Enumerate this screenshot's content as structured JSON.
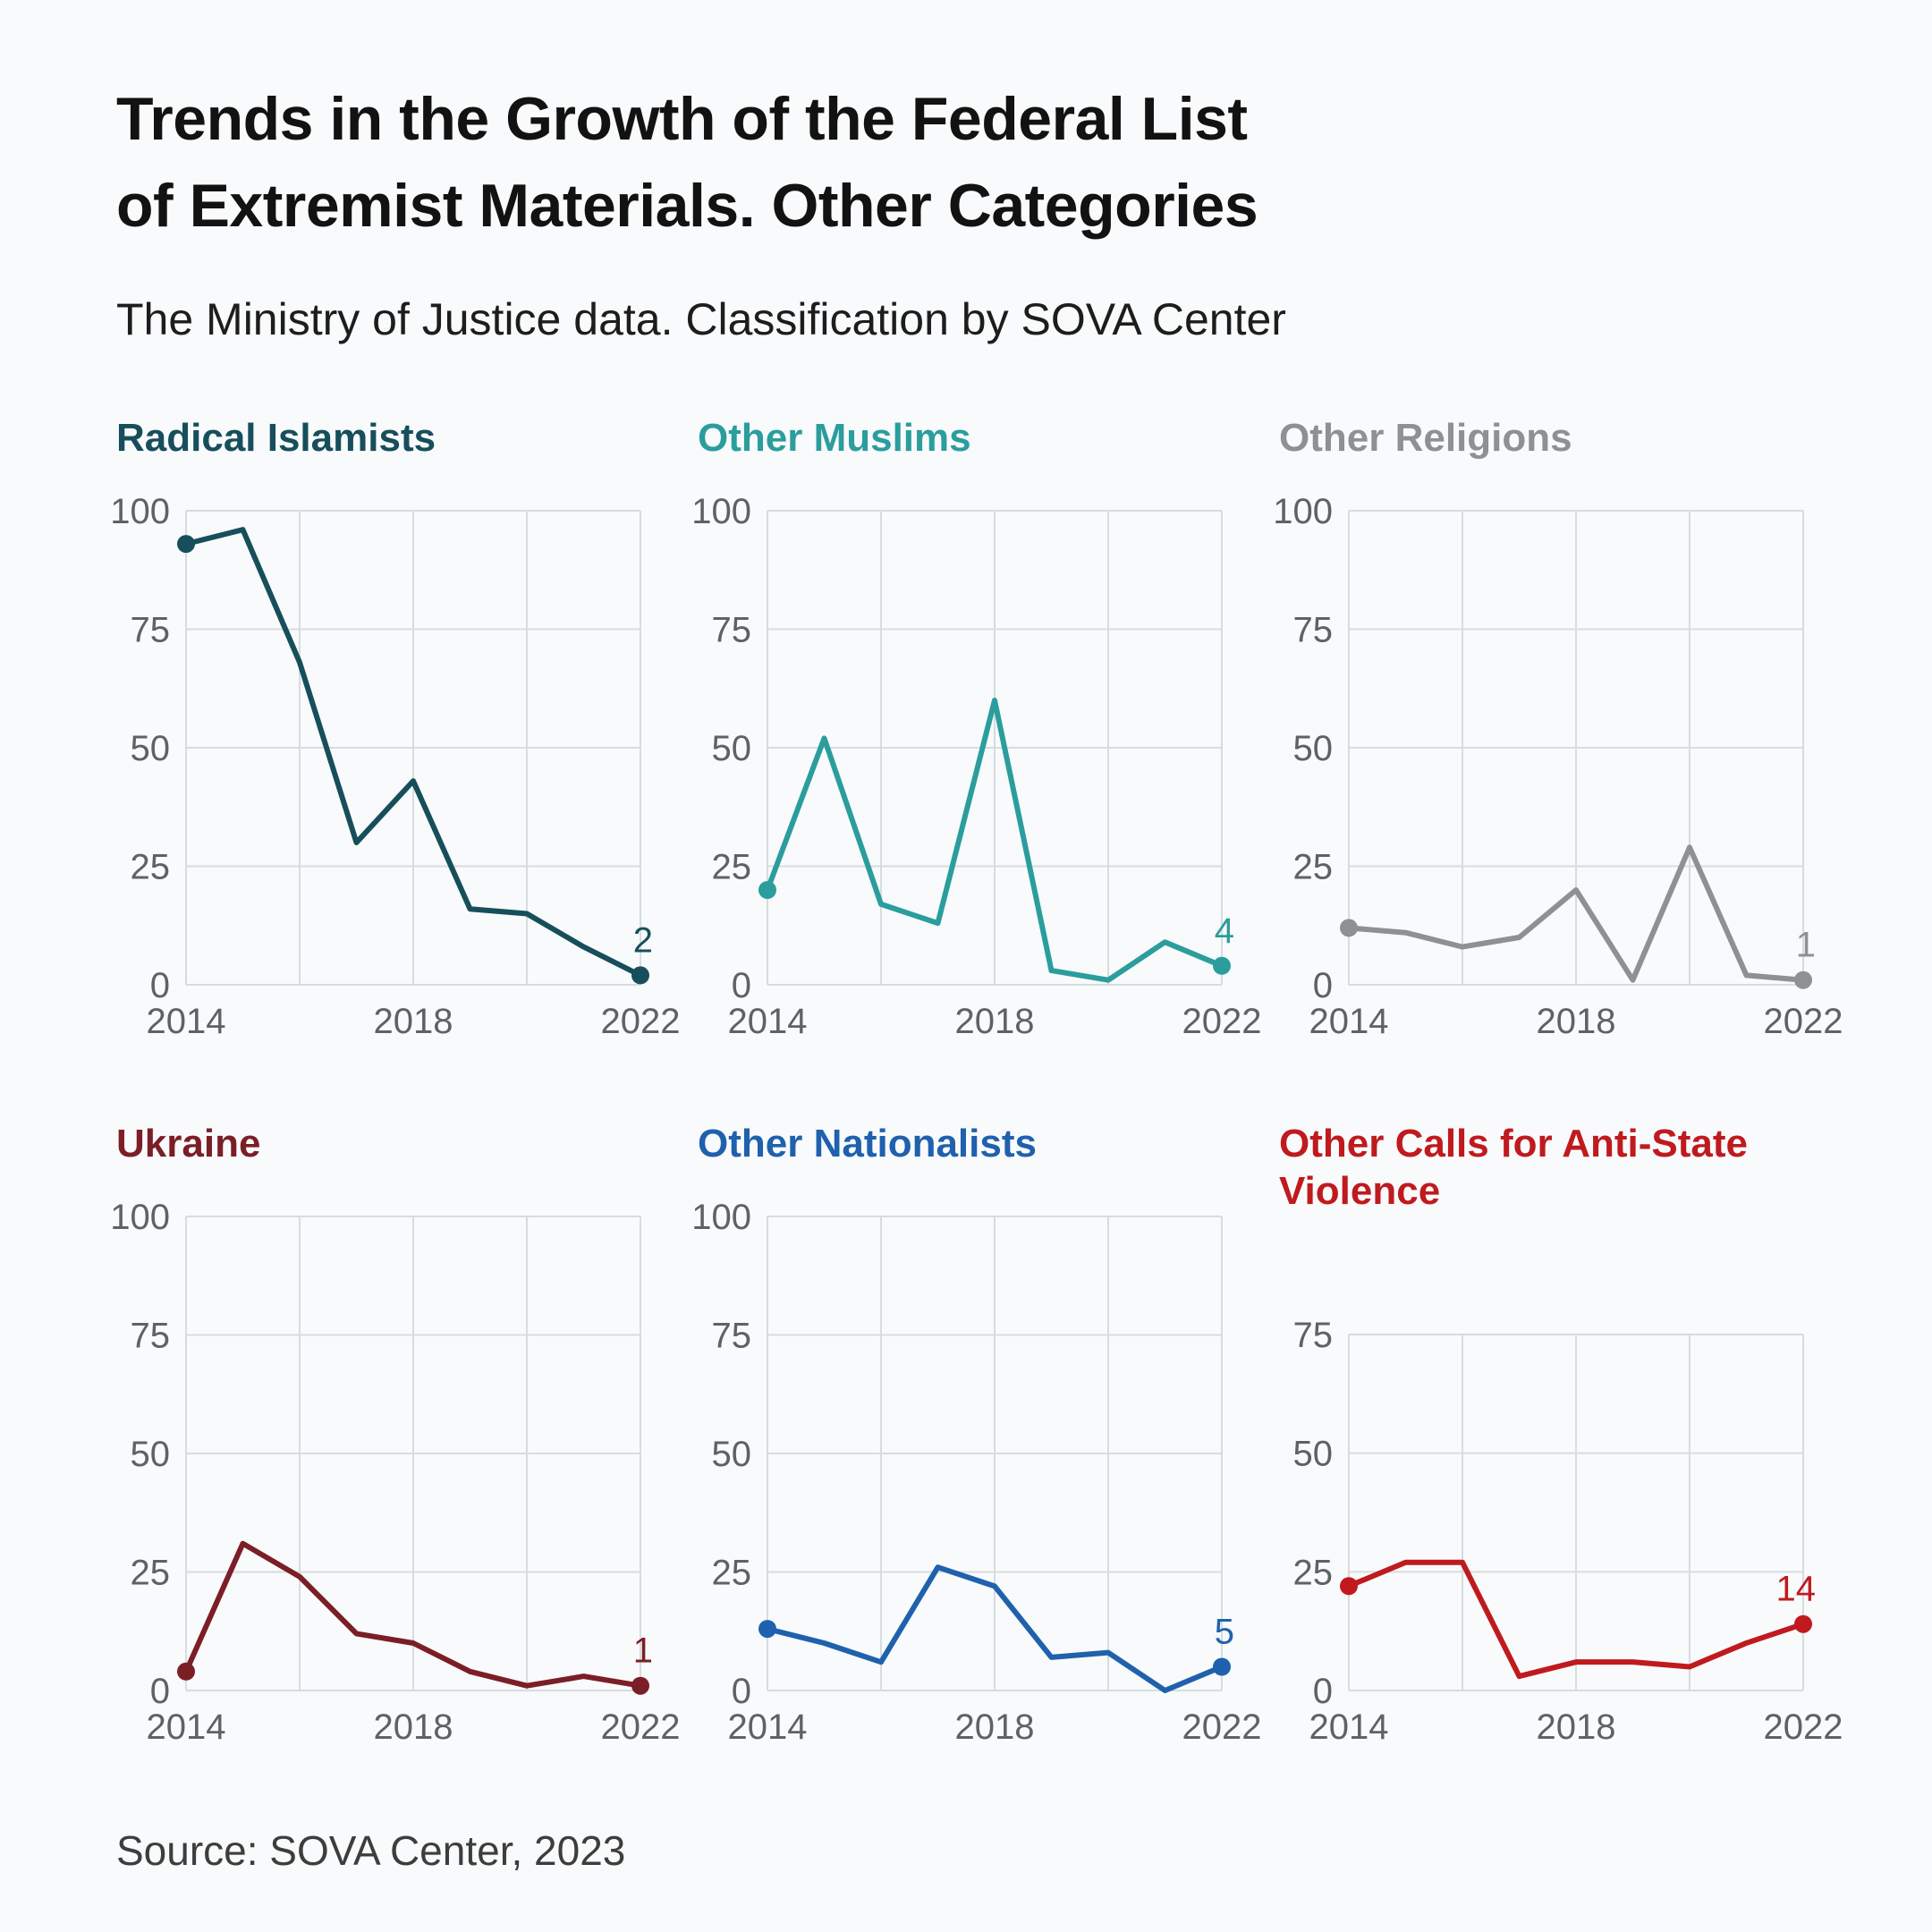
{
  "page": {
    "title_line1": "Trends in the Growth of the Federal List",
    "title_line2": "of Extremist Materials. Other Categories",
    "subtitle": "The Ministry of Justice data. Classification by SOVA Center",
    "source": "Source: SOVA Center, 2023"
  },
  "colors": {
    "background": "#f8fafb",
    "gridline": "#d7dcdf",
    "tick_label": "#5d6265"
  },
  "chart_data": [
    {
      "type": "line",
      "title": "Radical Islamists",
      "color": "#174e5b",
      "x": [
        2014,
        2015,
        2016,
        2017,
        2018,
        2019,
        2020,
        2021,
        2022
      ],
      "values": [
        93,
        96,
        68,
        30,
        43,
        16,
        15,
        8,
        2
      ],
      "end_label": "2",
      "ylim": [
        0,
        100
      ],
      "yticks": [
        0,
        25,
        50,
        75,
        100
      ],
      "xticks": [
        2014,
        2018,
        2022
      ],
      "xgrid": [
        2014,
        2016,
        2018,
        2020,
        2022
      ],
      "grid": true,
      "legend": "none"
    },
    {
      "type": "line",
      "title": "Other Muslims",
      "color": "#2b9d9d",
      "x": [
        2014,
        2015,
        2016,
        2017,
        2018,
        2019,
        2020,
        2021,
        2022
      ],
      "values": [
        20,
        52,
        17,
        13,
        60,
        3,
        1,
        9,
        4
      ],
      "end_label": "4",
      "ylim": [
        0,
        100
      ],
      "yticks": [
        0,
        25,
        50,
        75,
        100
      ],
      "xticks": [
        2014,
        2018,
        2022
      ],
      "xgrid": [
        2014,
        2016,
        2018,
        2020,
        2022
      ],
      "grid": true,
      "legend": "none"
    },
    {
      "type": "line",
      "title": "Other Religions",
      "color": "#8e9192",
      "x": [
        2014,
        2015,
        2016,
        2017,
        2018,
        2019,
        2020,
        2021,
        2022
      ],
      "values": [
        12,
        11,
        8,
        10,
        20,
        1,
        29,
        2,
        1
      ],
      "end_label": "1",
      "ylim": [
        0,
        100
      ],
      "yticks": [
        0,
        25,
        50,
        75,
        100
      ],
      "xticks": [
        2014,
        2018,
        2022
      ],
      "xgrid": [
        2014,
        2016,
        2018,
        2020,
        2022
      ],
      "grid": true,
      "legend": "none"
    },
    {
      "type": "line",
      "title": "Ukraine",
      "color": "#7b1e26",
      "x": [
        2014,
        2015,
        2016,
        2017,
        2018,
        2019,
        2020,
        2021,
        2022
      ],
      "values": [
        4,
        31,
        24,
        12,
        10,
        4,
        1,
        3,
        1
      ],
      "end_label": "1",
      "ylim": [
        0,
        100
      ],
      "yticks": [
        0,
        25,
        50,
        75,
        100
      ],
      "xticks": [
        2014,
        2018,
        2022
      ],
      "xgrid": [
        2014,
        2016,
        2018,
        2020,
        2022
      ],
      "grid": true,
      "legend": "none"
    },
    {
      "type": "line",
      "title": "Other Nationalists",
      "color": "#1f61ad",
      "x": [
        2014,
        2015,
        2016,
        2017,
        2018,
        2019,
        2020,
        2021,
        2022
      ],
      "values": [
        13,
        10,
        6,
        26,
        22,
        7,
        8,
        0,
        5
      ],
      "end_label": "5",
      "ylim": [
        0,
        100
      ],
      "yticks": [
        0,
        25,
        50,
        75,
        100
      ],
      "xticks": [
        2014,
        2018,
        2022
      ],
      "xgrid": [
        2014,
        2016,
        2018,
        2020,
        2022
      ],
      "grid": true,
      "legend": "none"
    },
    {
      "type": "line",
      "title": "Other Calls for Anti-State Violence",
      "color": "#c01a1e",
      "x": [
        2014,
        2015,
        2016,
        2017,
        2018,
        2019,
        2020,
        2021,
        2022
      ],
      "values": [
        22,
        27,
        27,
        3,
        6,
        6,
        5,
        10,
        14
      ],
      "end_label": "14",
      "ylim": [
        0,
        75
      ],
      "yticks": [
        0,
        25,
        50,
        75
      ],
      "xticks": [
        2014,
        2018,
        2022
      ],
      "xgrid": [
        2014,
        2016,
        2018,
        2020,
        2022
      ],
      "grid": true,
      "legend": "none"
    }
  ]
}
